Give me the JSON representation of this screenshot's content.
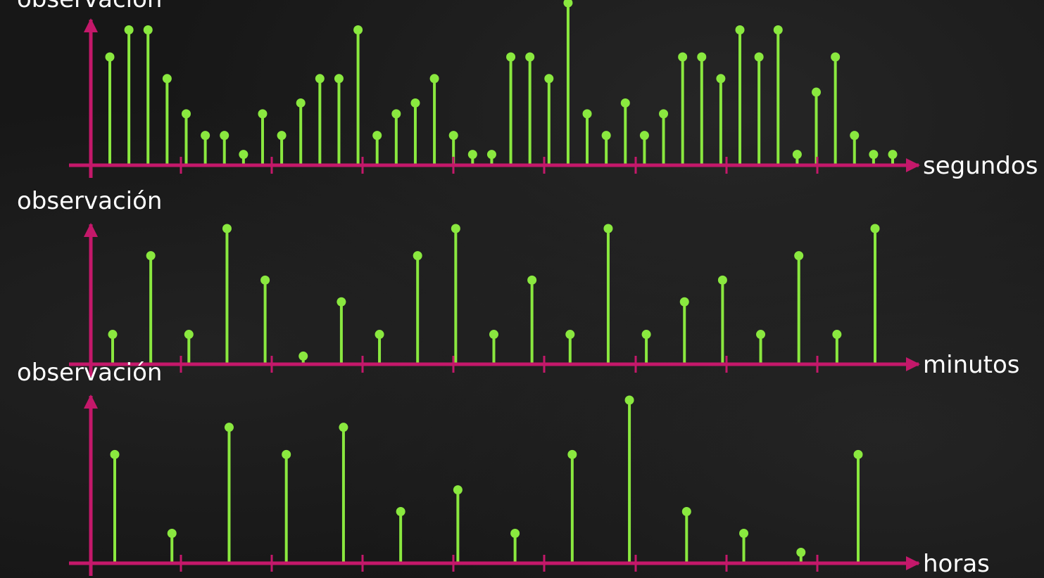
{
  "colors": {
    "stem": "#8ae83f",
    "axis": "#c4186a",
    "text": "#ffffff",
    "background": "#171717"
  },
  "chart_data": [
    {
      "type": "stem",
      "ylabel": "observación",
      "xlabel": "segundos",
      "ylim": [
        0,
        6
      ],
      "values": [
        4,
        5,
        5,
        3.2,
        1.9,
        1.1,
        1.1,
        0.4,
        1.9,
        1.1,
        2.3,
        3.2,
        3.2,
        5,
        1.1,
        1.9,
        2.3,
        3.2,
        1.1,
        0.4,
        0.4,
        4,
        4,
        3.2,
        6,
        1.9,
        1.1,
        2.3,
        1.1,
        1.9,
        4,
        4,
        3.2,
        5,
        4,
        5,
        0.4,
        2.7,
        4,
        1.1,
        0.4,
        0.4
      ]
    },
    {
      "type": "stem",
      "ylabel": "observación",
      "xlabel": "minutos",
      "ylim": [
        0,
        5
      ],
      "values": [
        1.1,
        4,
        1.1,
        5,
        3.1,
        0.3,
        2.3,
        1.1,
        4,
        5,
        1.1,
        3.1,
        1.1,
        5,
        1.1,
        2.3,
        3.1,
        1.1,
        4,
        1.1,
        5
      ]
    },
    {
      "type": "stem",
      "ylabel": "observación",
      "xlabel": "horas",
      "ylim": [
        0,
        6
      ],
      "values": [
        4,
        1.1,
        5,
        4,
        5,
        1.9,
        2.7,
        1.1,
        4,
        6,
        1.9,
        1.1,
        0.4,
        4
      ]
    }
  ]
}
